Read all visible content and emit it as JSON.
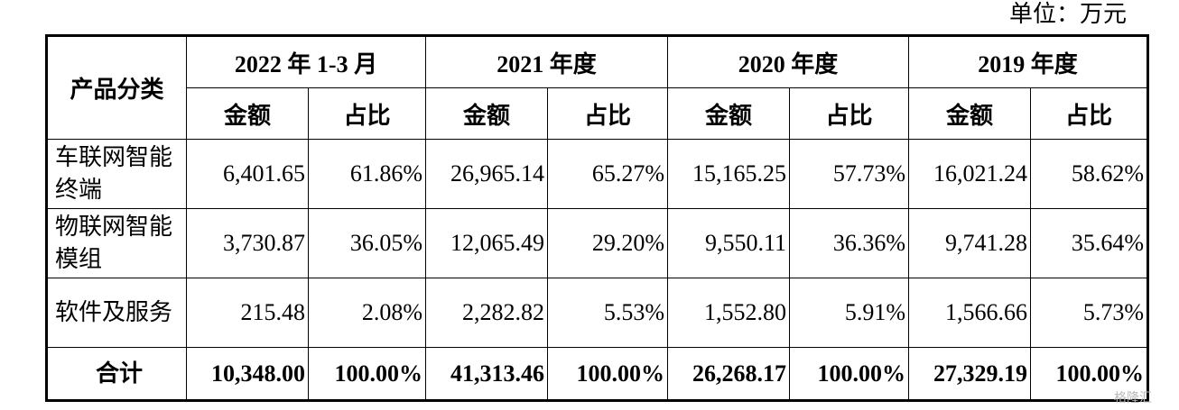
{
  "unit": "单位：万元",
  "table": {
    "header": {
      "category": "产品分类",
      "periods": [
        "2022 年 1-3 月",
        "2021 年度",
        "2020 年度",
        "2019 年度"
      ],
      "subcols": [
        "金额",
        "占比"
      ]
    },
    "rows": [
      {
        "label": "车联网智能终端",
        "cells": [
          "6,401.65",
          "61.86%",
          "26,965.14",
          "65.27%",
          "15,165.25",
          "57.73%",
          "16,021.24",
          "58.62%"
        ]
      },
      {
        "label": "物联网智能模组",
        "cells": [
          "3,730.87",
          "36.05%",
          "12,065.49",
          "29.20%",
          "9,550.11",
          "36.36%",
          "9,741.28",
          "35.64%"
        ]
      },
      {
        "label": "软件及服务",
        "cells": [
          "215.48",
          "2.08%",
          "2,282.82",
          "5.53%",
          "1,552.80",
          "5.91%",
          "1,566.66",
          "5.73%"
        ]
      }
    ],
    "total": {
      "label": "合计",
      "cells": [
        "10,348.00",
        "100.00%",
        "41,313.46",
        "100.00%",
        "26,268.17",
        "100.00%",
        "27,329.19",
        "100.00%"
      ]
    }
  },
  "watermark": "格隆汇"
}
